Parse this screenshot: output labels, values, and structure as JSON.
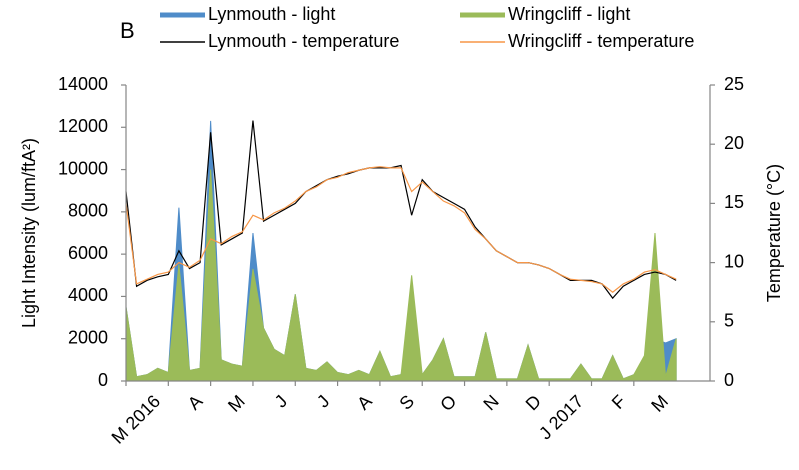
{
  "chart_data": {
    "type": "line",
    "panel_label": "B",
    "y_label": "Light Intensity (lum/ftA²)",
    "y2_label": "Temperature (°C)",
    "x": [
      0,
      0.25,
      0.5,
      0.75,
      1,
      1.25,
      1.5,
      1.75,
      2,
      2.25,
      2.5,
      2.75,
      3,
      3.25,
      3.5,
      3.75,
      4,
      4.25,
      4.5,
      4.75,
      5,
      5.25,
      5.5,
      5.75,
      6,
      6.25,
      6.5,
      6.75,
      7,
      7.25,
      7.5,
      7.75,
      8,
      8.25,
      8.5,
      8.75,
      9,
      9.25,
      9.5,
      9.75,
      10,
      10.25,
      10.5,
      10.75,
      11,
      11.25,
      11.5,
      11.75,
      12,
      12.25,
      12.5,
      12.75,
      13
    ],
    "xlim": [
      0,
      13.8
    ],
    "xticks": [
      {
        "value": 0,
        "label": "M 2016"
      },
      {
        "value": 1,
        "label": "A"
      },
      {
        "value": 2,
        "label": "M"
      },
      {
        "value": 3,
        "label": "J"
      },
      {
        "value": 4,
        "label": "J"
      },
      {
        "value": 5,
        "label": "A"
      },
      {
        "value": 6,
        "label": "S"
      },
      {
        "value": 7,
        "label": "O"
      },
      {
        "value": 8,
        "label": "N"
      },
      {
        "value": 9,
        "label": "D"
      },
      {
        "value": 10,
        "label": "J 2017"
      },
      {
        "value": 11,
        "label": "F"
      },
      {
        "value": 12,
        "label": "M"
      }
    ],
    "ylim": [
      0,
      14000
    ],
    "yticks": [
      0,
      2000,
      4000,
      6000,
      8000,
      10000,
      12000,
      14000
    ],
    "y2lim": [
      0,
      25
    ],
    "y2ticks": [
      0,
      5,
      10,
      15,
      20,
      25
    ],
    "series": [
      {
        "name": "Lynmouth - light",
        "color": "#4f8cc9",
        "fill": true,
        "values": [
          3500,
          200,
          300,
          600,
          400,
          8200,
          500,
          600,
          12300,
          1000,
          800,
          700,
          7000,
          2500,
          1500,
          1200,
          4100,
          600,
          500,
          900,
          400,
          300,
          500,
          300,
          1400,
          200,
          300,
          3200,
          300,
          1000,
          2000,
          200,
          200,
          200,
          2300,
          100,
          100,
          100,
          1700,
          100,
          100,
          100,
          100,
          800,
          100,
          100,
          1200,
          100,
          300,
          800,
          2000,
          1800,
          2000
        ]
      },
      {
        "name": "Wringcliff - light",
        "color": "#9bbb59",
        "fill": true,
        "values": [
          3500,
          200,
          300,
          600,
          400,
          5500,
          500,
          600,
          10000,
          1000,
          800,
          700,
          5300,
          2500,
          1500,
          1200,
          4100,
          600,
          500,
          900,
          400,
          300,
          500,
          300,
          1400,
          200,
          300,
          5000,
          300,
          1000,
          2000,
          200,
          200,
          200,
          2300,
          100,
          100,
          100,
          1700,
          100,
          100,
          100,
          100,
          800,
          100,
          100,
          1200,
          100,
          300,
          1200,
          7000,
          200,
          2000
        ]
      },
      {
        "name": "Lynmouth - temperature",
        "color": "#000000",
        "axis": "y2",
        "fill": false,
        "values": [
          16,
          8,
          8.5,
          8.8,
          9,
          11,
          9.5,
          10,
          21,
          11.5,
          12,
          12.5,
          22,
          13.5,
          14,
          14.5,
          15,
          16,
          16.5,
          17,
          17.3,
          17.5,
          17.8,
          18,
          18,
          18,
          18.2,
          14,
          17,
          16,
          15.5,
          15,
          14.5,
          13,
          12,
          11,
          10.5,
          10,
          10,
          9.8,
          9.5,
          9,
          8.5,
          8.5,
          8.5,
          8.2,
          7,
          8,
          8.5,
          9,
          9.2,
          9,
          8.5
        ]
      },
      {
        "name": "Wringcliff - temperature",
        "color": "#f79646",
        "axis": "y2",
        "fill": false,
        "values": [
          15,
          8.2,
          8.6,
          9,
          9.2,
          10,
          9.6,
          10.2,
          12,
          11.6,
          12.2,
          12.6,
          14,
          13.6,
          14.2,
          14.6,
          15.2,
          16,
          16.4,
          17,
          17.2,
          17.6,
          17.8,
          18,
          18.1,
          18,
          18,
          16,
          16.8,
          16,
          15.2,
          14.8,
          14.2,
          12.8,
          12,
          11,
          10.5,
          10,
          10,
          9.8,
          9.5,
          9,
          8.6,
          8.5,
          8.4,
          8.2,
          7.5,
          8.2,
          8.6,
          9.2,
          9.4,
          9,
          8.6
        ]
      }
    ]
  }
}
